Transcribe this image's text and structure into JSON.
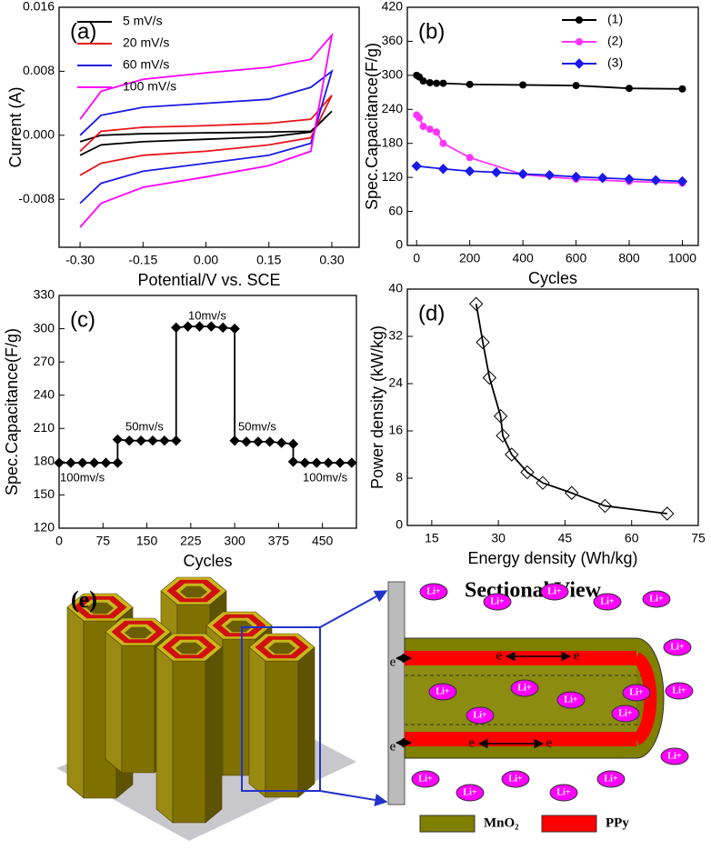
{
  "chart_data": [
    {
      "type": "line",
      "panel_label": "(a)",
      "x_label": "Potential/V vs. SCE",
      "y_label": "Current (A)",
      "xlim": [
        -0.35,
        0.365
      ],
      "ylim": [
        -0.014,
        0.016
      ],
      "xticks": [
        {
          "value": -0.3,
          "label": "-0.30"
        },
        -0.15,
        {
          "value": 0,
          "label": "0.00"
        },
        0.15,
        {
          "value": 0.3,
          "label": "0.30"
        }
      ],
      "yticks": [
        -0.008,
        {
          "value": 0,
          "label": "0.000"
        },
        0.008,
        0.016
      ],
      "legend": "upper left",
      "series": [
        {
          "name": "5 mV/s",
          "color": "#000000",
          "x": [
            -0.3,
            -0.25,
            -0.15,
            0,
            0.15,
            0.25,
            0.3,
            0.25,
            0.15,
            0,
            -0.15,
            -0.25,
            -0.3
          ],
          "values": [
            -0.0025,
            -0.0012,
            -0.0008,
            -0.0005,
            -0.0002,
            0.0004,
            0.003,
            0.0005,
            0.0004,
            0.0003,
            0.0002,
            0,
            -0.0008
          ]
        },
        {
          "name": "20 mV/s",
          "color": "#e8141a",
          "x": [
            -0.3,
            -0.25,
            -0.15,
            0,
            0.15,
            0.25,
            0.3,
            0.25,
            0.15,
            0,
            -0.15,
            -0.25,
            -0.3
          ],
          "values": [
            -0.005,
            -0.0035,
            -0.0025,
            -0.002,
            -0.0012,
            -0.0003,
            0.005,
            0.002,
            0.0015,
            0.0012,
            0.001,
            0.0005,
            -0.002
          ]
        },
        {
          "name": "60 mV/s",
          "color": "#1a1ae6",
          "x": [
            -0.3,
            -0.25,
            -0.15,
            0,
            0.15,
            0.25,
            0.3,
            0.25,
            0.15,
            0,
            -0.15,
            -0.25,
            -0.3
          ],
          "values": [
            -0.0085,
            -0.006,
            -0.0045,
            -0.0035,
            -0.0025,
            -0.001,
            0.008,
            0.006,
            0.0045,
            0.004,
            0.0035,
            0.0025,
            0
          ]
        },
        {
          "name": "100 mV/s",
          "color": "#ff00ff",
          "x": [
            -0.3,
            -0.25,
            -0.15,
            0,
            0.15,
            0.25,
            0.3,
            0.25,
            0.15,
            0,
            -0.15,
            -0.25,
            -0.3
          ],
          "values": [
            -0.0115,
            -0.0085,
            -0.0065,
            -0.0052,
            -0.0038,
            -0.002,
            0.0125,
            0.0095,
            0.0085,
            0.0078,
            0.007,
            0.0055,
            0.002
          ]
        }
      ]
    },
    {
      "type": "line",
      "panel_label": "(b)",
      "x_label": "Cycles",
      "y_label": "Spec.Capacitance(F/g)",
      "xlim": [
        -35,
        1060
      ],
      "ylim": [
        0,
        420
      ],
      "xticks": [
        0,
        200,
        400,
        600,
        800,
        1000
      ],
      "yticks": [
        0,
        60,
        120,
        180,
        240,
        300,
        360,
        420
      ],
      "legend": "upper right",
      "series": [
        {
          "name": "(1)",
          "color": "#000000",
          "marker": "circle",
          "x": [
            0,
            10,
            25,
            50,
            75,
            100,
            200,
            400,
            600,
            800,
            1000
          ],
          "values": [
            300,
            297,
            290,
            287,
            286,
            286,
            284,
            283,
            282,
            277,
            276
          ]
        },
        {
          "name": "(2)",
          "color": "#ff33ff",
          "marker": "circle",
          "x": [
            0,
            10,
            25,
            50,
            75,
            100,
            200,
            400,
            600,
            800,
            1000
          ],
          "values": [
            230,
            225,
            210,
            205,
            200,
            180,
            155,
            125,
            117,
            113,
            110
          ]
        },
        {
          "name": "(3)",
          "color": "#1a1ae6",
          "marker": "diamond",
          "x": [
            0,
            100,
            200,
            300,
            400,
            500,
            600,
            700,
            800,
            900,
            1000
          ],
          "values": [
            140,
            135,
            131,
            129,
            126,
            124,
            121,
            119,
            117,
            115,
            113
          ]
        }
      ]
    },
    {
      "type": "line",
      "panel_label": "(c)",
      "x_label": "Cycles",
      "y_label": "Spec.Capacitance(F/g)",
      "xlim": [
        0,
        508
      ],
      "ylim": [
        120,
        330
      ],
      "xticks": [
        0,
        75,
        150,
        225,
        300,
        375,
        450
      ],
      "yticks": [
        120,
        150,
        180,
        210,
        240,
        270,
        300,
        330
      ],
      "annotations": [
        "100mv/s",
        "50mv/s",
        "10mv/s",
        "50mv/s",
        "100mv/s"
      ],
      "series": [
        {
          "color": "#000000",
          "marker": "diamond",
          "x": [
            0,
            20,
            40,
            60,
            80,
            100,
            100,
            120,
            140,
            160,
            180,
            200,
            200,
            220,
            240,
            260,
            280,
            300,
            300,
            320,
            340,
            360,
            380,
            400,
            400,
            420,
            440,
            460,
            480,
            500
          ],
          "values": [
            179,
            179,
            179,
            179,
            179,
            179,
            200,
            199,
            199,
            199,
            199,
            199,
            301,
            302,
            302,
            302,
            301,
            300,
            199,
            198,
            198,
            198,
            197,
            196,
            180,
            179,
            179,
            179,
            179,
            179
          ]
        }
      ]
    },
    {
      "type": "line",
      "panel_label": "(d)",
      "x_label": "Energy density (Wh/kg)",
      "y_label": "Power density (kW/kg)",
      "xlim": [
        9.5,
        75
      ],
      "ylim": [
        0,
        40
      ],
      "xticks": [
        15,
        30,
        45,
        60,
        75
      ],
      "yticks": [
        0,
        8,
        16,
        24,
        32,
        40
      ],
      "series": [
        {
          "color": "#000000",
          "marker": "diamond-open",
          "x": [
            25,
            26.5,
            28,
            30.5,
            31,
            33,
            36.5,
            40,
            46.5,
            54,
            68
          ],
          "values": [
            37.5,
            31,
            25,
            18.5,
            15.2,
            12,
            9,
            7.2,
            5.5,
            3.3,
            2
          ]
        }
      ]
    }
  ],
  "diagram": {
    "panel_label": "(e)",
    "title": "Sectional View",
    "ion_label": "Li+",
    "electron_label": "e",
    "legend": [
      {
        "label": "MnO₂",
        "color": "#7f7f00"
      },
      {
        "label": "PPy",
        "color": "#ff0000"
      }
    ]
  }
}
